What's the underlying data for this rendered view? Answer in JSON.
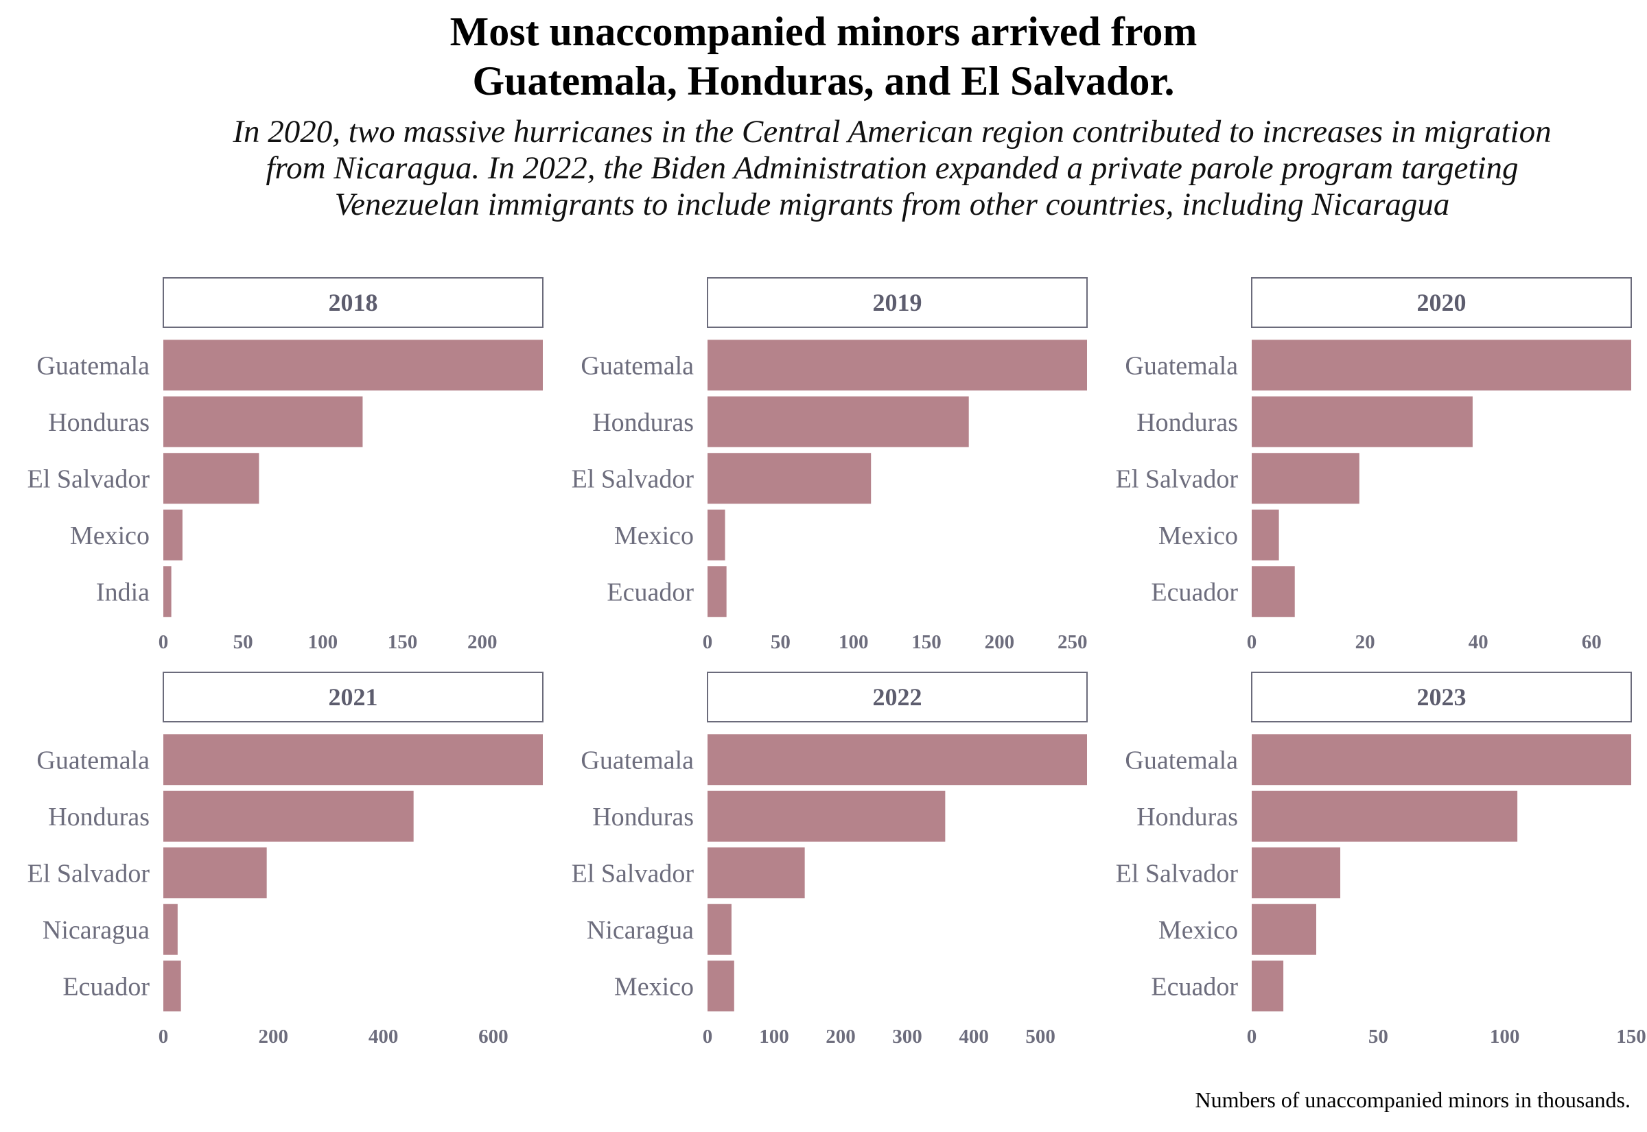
{
  "header": {
    "title_lines": [
      "Most unaccompanied minors arrived from",
      "Guatemala, Honduras, and El Salvador."
    ],
    "subtitle_lines": [
      "In 2020, two massive hurricanes in the Central American region contributed to increases in migration",
      "from Nicaragua. In 2022, the Biden Administration expanded a private parole program targeting",
      "Venezuelan immigrants to include migrants from other countries, including Nicaragua"
    ],
    "caption": "Numbers of unaccompanied minors in thousands."
  },
  "colors": {
    "bar": "#b5838b",
    "strip_border": "#6b6b7b",
    "label_text": "#6d6d7d"
  },
  "chart_data": [
    {
      "type": "bar",
      "orientation": "horizontal",
      "title": "2018",
      "categories": [
        "Guatemala",
        "Honduras",
        "El Salvador",
        "Mexico",
        "India"
      ],
      "values": [
        238,
        125,
        60,
        12,
        5
      ],
      "xlim": [
        0,
        238
      ],
      "xticks": [
        0,
        50,
        100,
        150,
        200
      ]
    },
    {
      "type": "bar",
      "orientation": "horizontal",
      "title": "2019",
      "categories": [
        "Guatemala",
        "Honduras",
        "El Salvador",
        "Mexico",
        "Ecuador"
      ],
      "values": [
        260,
        179,
        112,
        12,
        13
      ],
      "xlim": [
        0,
        260
      ],
      "xticks": [
        0,
        50,
        100,
        150,
        200,
        250
      ]
    },
    {
      "type": "bar",
      "orientation": "horizontal",
      "title": "2020",
      "categories": [
        "Guatemala",
        "Honduras",
        "El Salvador",
        "Mexico",
        "Ecuador"
      ],
      "values": [
        67,
        39,
        19,
        4.8,
        7.6
      ],
      "xlim": [
        0,
        67
      ],
      "xticks": [
        0,
        20,
        40,
        60
      ]
    },
    {
      "type": "bar",
      "orientation": "horizontal",
      "title": "2021",
      "categories": [
        "Guatemala",
        "Honduras",
        "El Salvador",
        "Nicaragua",
        "Ecuador"
      ],
      "values": [
        690,
        455,
        188,
        26,
        32
      ],
      "xlim": [
        0,
        690
      ],
      "xticks": [
        0,
        200,
        400,
        600
      ]
    },
    {
      "type": "bar",
      "orientation": "horizontal",
      "title": "2022",
      "categories": [
        "Guatemala",
        "Honduras",
        "El Salvador",
        "Nicaragua",
        "Mexico"
      ],
      "values": [
        570,
        357,
        146,
        36,
        40
      ],
      "xlim": [
        0,
        570
      ],
      "xticks": [
        0,
        100,
        200,
        300,
        400,
        500
      ]
    },
    {
      "type": "bar",
      "orientation": "horizontal",
      "title": "2023",
      "categories": [
        "Guatemala",
        "Honduras",
        "El Salvador",
        "Mexico",
        "Ecuador"
      ],
      "values": [
        150,
        105,
        35,
        25.5,
        12.5
      ],
      "xlim": [
        0,
        150
      ],
      "xticks": [
        0,
        50,
        100,
        150
      ]
    }
  ]
}
